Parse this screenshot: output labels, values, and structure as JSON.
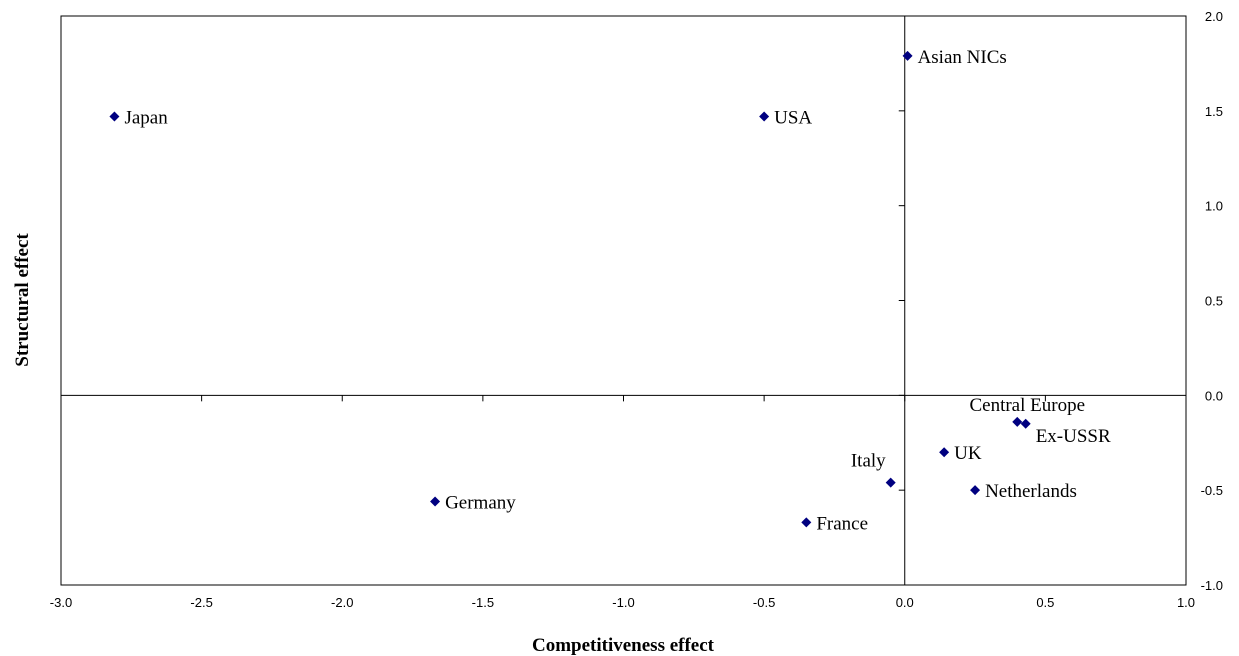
{
  "chart_data": {
    "type": "scatter",
    "xlabel": "Competitiveness effect",
    "ylabel": "Structural effect",
    "xlim": [
      -3.0,
      1.0
    ],
    "ylim": [
      -1.0,
      2.0
    ],
    "x_ticks": [
      "-3.0",
      "-2.5",
      "-2.0",
      "-1.5",
      "-1.0",
      "-0.5",
      "0.0",
      "0.5",
      "1.0"
    ],
    "y_ticks": [
      "-1.0",
      "-0.5",
      "0.0",
      "0.5",
      "1.0",
      "1.5",
      "2.0"
    ],
    "y_axis_side": "right",
    "grid": false,
    "marker_color": "#000080",
    "points": [
      {
        "label": "Asian NICs",
        "x": 0.01,
        "y": 1.79,
        "label_pos": "right"
      },
      {
        "label": "Japan",
        "x": -2.81,
        "y": 1.47,
        "label_pos": "right"
      },
      {
        "label": "USA",
        "x": -0.5,
        "y": 1.47,
        "label_pos": "right"
      },
      {
        "label": "Central Europe",
        "x": 0.4,
        "y": -0.14,
        "label_pos": "above"
      },
      {
        "label": "Ex-USSR",
        "x": 0.43,
        "y": -0.15,
        "label_pos": "right"
      },
      {
        "label": "UK",
        "x": 0.14,
        "y": -0.3,
        "label_pos": "right"
      },
      {
        "label": "Italy",
        "x": -0.05,
        "y": -0.46,
        "label_pos": "above"
      },
      {
        "label": "Netherlands",
        "x": 0.25,
        "y": -0.5,
        "label_pos": "right"
      },
      {
        "label": "Germany",
        "x": -1.67,
        "y": -0.56,
        "label_pos": "right"
      },
      {
        "label": "France",
        "x": -0.35,
        "y": -0.67,
        "label_pos": "right"
      }
    ]
  }
}
